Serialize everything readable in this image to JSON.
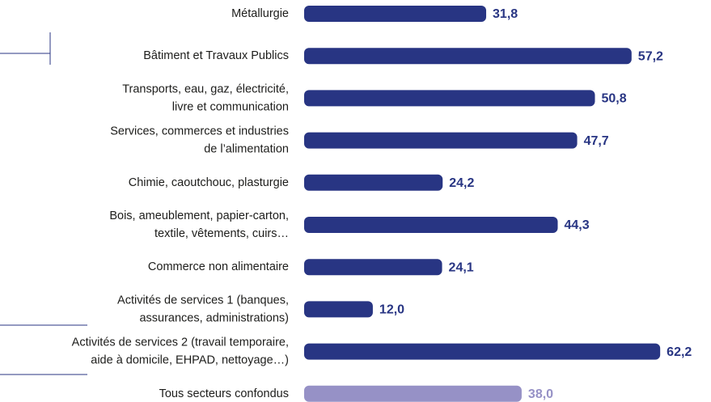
{
  "chart_data": {
    "type": "bar",
    "orientation": "horizontal",
    "categories": [
      [
        "Métallurgie"
      ],
      [
        "Bâtiment et Travaux Publics"
      ],
      [
        "Transports, eau, gaz, électricité,",
        "livre et communication"
      ],
      [
        "Services, commerces et industries",
        "de l’alimentation"
      ],
      [
        "Chimie, caoutchouc, plasturgie"
      ],
      [
        "Bois, ameublement, papier-carton,",
        "textile, vêtements, cuirs…"
      ],
      [
        "Commerce non alimentaire"
      ],
      [
        "Activités de services 1 (banques,",
        "assurances, administrations)"
      ],
      [
        "Activités de services 2 (travail temporaire,",
        "aide à domicile, EHPAD, nettoyage…)"
      ],
      [
        "Tous secteurs confondus"
      ]
    ],
    "values": [
      31.8,
      57.2,
      50.8,
      47.7,
      24.2,
      44.3,
      24.1,
      12.0,
      62.2,
      38.0
    ],
    "value_labels": [
      "31,8",
      "57,2",
      "50,8",
      "47,7",
      "24,2",
      "44,3",
      "24,1",
      "12,0",
      "62,2",
      "38,0"
    ],
    "colors": [
      "#283583",
      "#283583",
      "#283583",
      "#283583",
      "#283583",
      "#283583",
      "#283583",
      "#283583",
      "#283583",
      "#9691c6"
    ],
    "xlim": [
      0,
      65
    ]
  }
}
